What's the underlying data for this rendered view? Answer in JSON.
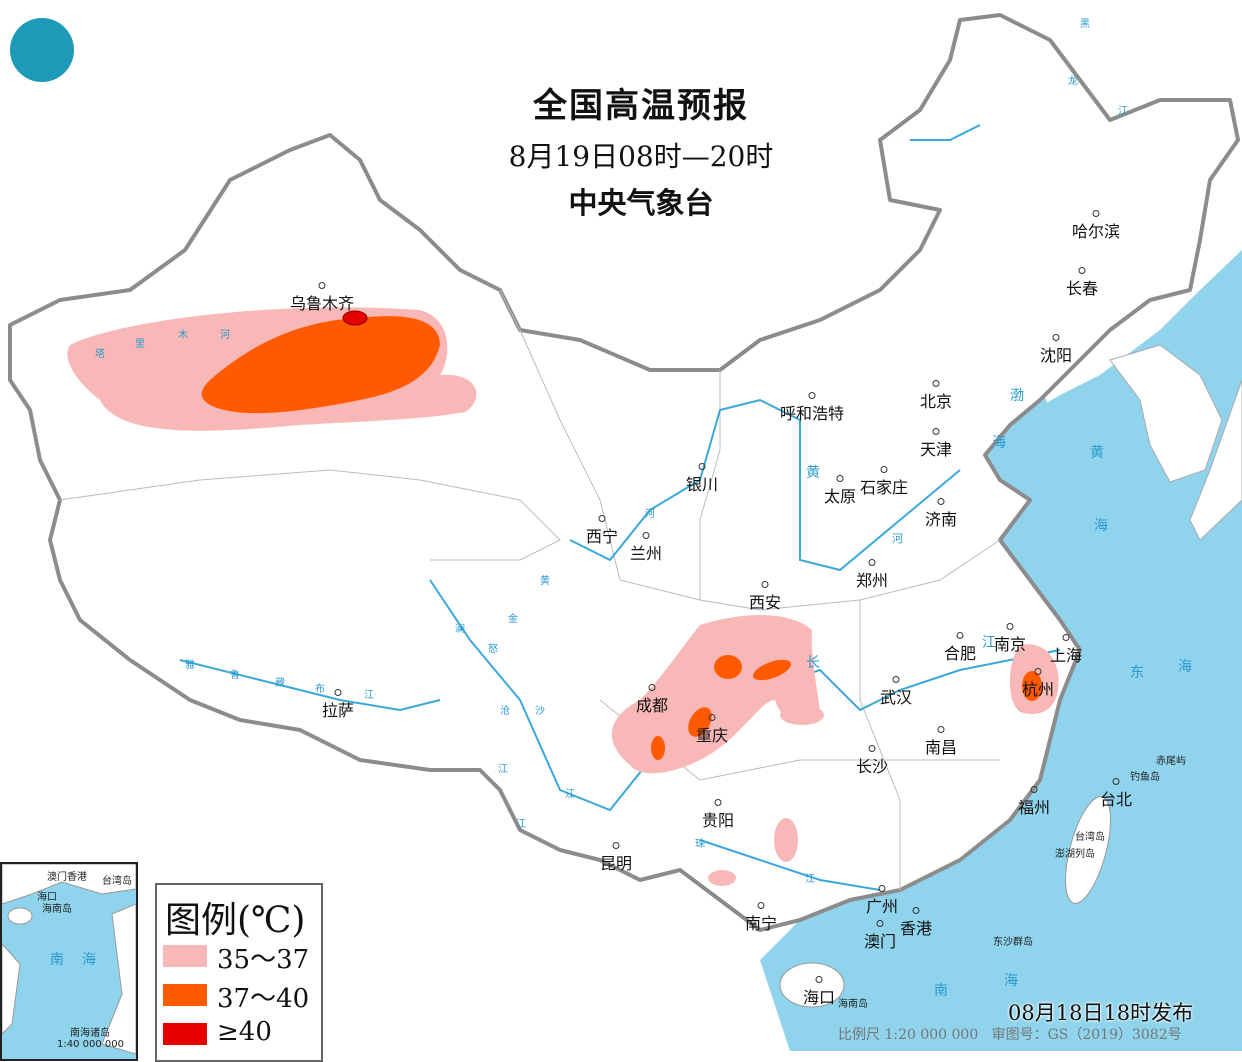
{
  "header": {
    "title": "全国高温预报",
    "period": "8月19日08时—20时",
    "issuer": "中央气象台"
  },
  "logo": {
    "icon": "cma-logo"
  },
  "colors": {
    "sea": "#8fd3ec",
    "land": "#ffffff",
    "border": "#8c8c8c",
    "river": "#3aa8d8",
    "heat_35_37": "#f9b8b8",
    "heat_37_40": "#ff5a00",
    "heat_40": "#e60000"
  },
  "cities": [
    "乌鲁木齐",
    "哈尔滨",
    "长春",
    "沈阳",
    "北京",
    "天津",
    "呼和浩特",
    "银川",
    "太原",
    "石家庄",
    "济南",
    "西宁",
    "兰州",
    "郑州",
    "西安",
    "合肥",
    "南京",
    "上海",
    "杭州",
    "成都",
    "武汉",
    "重庆",
    "拉萨",
    "长沙",
    "南昌",
    "贵阳",
    "福州",
    "台北",
    "昆明",
    "南宁",
    "广州",
    "香港",
    "澳门",
    "海口"
  ],
  "labels": {
    "bohai": "渤",
    "sea_hai": "海",
    "huang": "黄",
    "hai2": "海",
    "dong": "东",
    "hai3": "海",
    "nan": "南",
    "hai4": "海",
    "taiwan_island": "台湾岛",
    "penghu": "澎湖列岛",
    "diaoyu": "钓鱼岛",
    "chiwei": "赤尾屿",
    "dongsha": "东沙群岛",
    "hainan_island": "海南岛",
    "tarim": [
      "塔",
      "里",
      "木",
      "河"
    ],
    "yarlung": [
      "雅",
      "鲁",
      "藏",
      "布",
      "江"
    ],
    "yellow_river": [
      "黄",
      "河",
      "黄",
      "河"
    ],
    "yangtze": [
      "长",
      "江",
      "金",
      "沙",
      "江",
      "澜",
      "沧",
      "江",
      "怒",
      "江"
    ],
    "pearl": [
      "珠",
      "江"
    ],
    "heilong": [
      "黑",
      "龙",
      "江"
    ]
  },
  "inset": {
    "sea_label": [
      "南",
      "海"
    ],
    "islands": "南海诸岛",
    "scale": "1:40 000 000",
    "labels": [
      "澳门",
      "香港",
      "台湾岛",
      "海口",
      "海南岛"
    ]
  },
  "legend": {
    "title": "图例(℃)",
    "items": [
      {
        "label": "35～37",
        "color": "#f9b8b8"
      },
      {
        "label": "37～40",
        "color": "#ff5a00"
      },
      {
        "label": "≥40",
        "color": "#e60000"
      }
    ]
  },
  "footer": {
    "issued": "08月18日18时发布",
    "scale": "比例尺 1:20 000 000",
    "approval": "审图号：GS（2019）3082号"
  }
}
